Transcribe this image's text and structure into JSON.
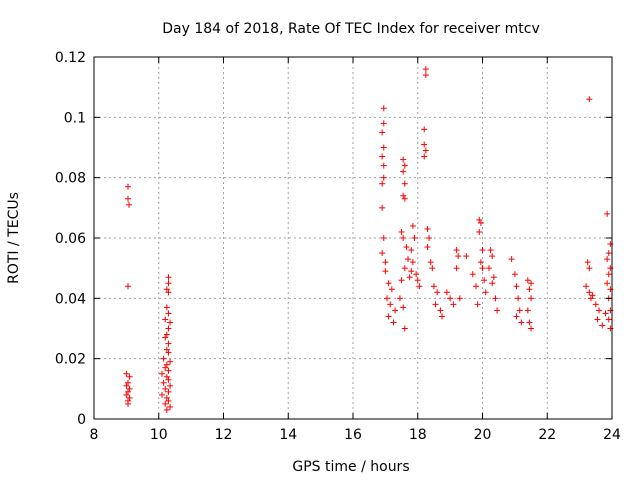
{
  "chart_data": {
    "type": "scatter",
    "title": "Day 184 of 2018, Rate Of TEC Index for receiver mtcv",
    "xlabel": "GPS time / hours",
    "ylabel": "ROTI / TECUs",
    "xlim": [
      8,
      24
    ],
    "ylim": [
      0,
      0.12
    ],
    "x_ticks": [
      8,
      10,
      12,
      14,
      16,
      18,
      20,
      22,
      24
    ],
    "x_tick_labels": [
      "8",
      "10",
      "12",
      "14",
      "16",
      "18",
      "20",
      "22",
      "24"
    ],
    "y_ticks": [
      0,
      0.02,
      0.04,
      0.06,
      0.08,
      0.1,
      0.12
    ],
    "y_tick_labels": [
      "0",
      "0.02",
      "0.04",
      "0.06",
      "0.08",
      "0.1",
      "0.12"
    ],
    "grid": true,
    "marker": "+",
    "marker_color": "#ff0000",
    "series": [
      {
        "name": "ROTI",
        "points": [
          [
            9.05,
            0.077
          ],
          [
            9.05,
            0.073
          ],
          [
            9.08,
            0.071
          ],
          [
            9.05,
            0.044
          ],
          [
            9.0,
            0.015
          ],
          [
            9.1,
            0.014
          ],
          [
            9.05,
            0.012
          ],
          [
            9.0,
            0.011
          ],
          [
            9.1,
            0.01
          ],
          [
            9.05,
            0.009
          ],
          [
            9.0,
            0.008
          ],
          [
            9.1,
            0.007
          ],
          [
            9.05,
            0.006
          ],
          [
            9.05,
            0.005
          ],
          [
            10.3,
            0.047
          ],
          [
            10.3,
            0.045
          ],
          [
            10.25,
            0.043
          ],
          [
            10.3,
            0.042
          ],
          [
            10.25,
            0.037
          ],
          [
            10.3,
            0.035
          ],
          [
            10.2,
            0.033
          ],
          [
            10.35,
            0.032
          ],
          [
            10.3,
            0.03
          ],
          [
            10.25,
            0.028
          ],
          [
            10.2,
            0.027
          ],
          [
            10.3,
            0.025
          ],
          [
            10.25,
            0.023
          ],
          [
            10.3,
            0.022
          ],
          [
            10.15,
            0.02
          ],
          [
            10.35,
            0.019
          ],
          [
            10.25,
            0.018
          ],
          [
            10.2,
            0.017
          ],
          [
            10.3,
            0.016
          ],
          [
            10.1,
            0.015
          ],
          [
            10.25,
            0.014
          ],
          [
            10.3,
            0.013
          ],
          [
            10.15,
            0.012
          ],
          [
            10.35,
            0.011
          ],
          [
            10.2,
            0.01
          ],
          [
            10.3,
            0.009
          ],
          [
            10.1,
            0.008
          ],
          [
            10.25,
            0.007
          ],
          [
            10.3,
            0.006
          ],
          [
            10.2,
            0.005
          ],
          [
            10.35,
            0.004
          ],
          [
            10.25,
            0.003
          ],
          [
            16.95,
            0.103
          ],
          [
            16.95,
            0.098
          ],
          [
            16.9,
            0.095
          ],
          [
            16.95,
            0.09
          ],
          [
            16.9,
            0.087
          ],
          [
            16.95,
            0.084
          ],
          [
            16.95,
            0.08
          ],
          [
            16.9,
            0.078
          ],
          [
            16.9,
            0.07
          ],
          [
            16.95,
            0.06
          ],
          [
            16.9,
            0.055
          ],
          [
            17.0,
            0.052
          ],
          [
            17.0,
            0.049
          ],
          [
            17.1,
            0.045
          ],
          [
            17.2,
            0.043
          ],
          [
            17.05,
            0.04
          ],
          [
            17.15,
            0.038
          ],
          [
            17.3,
            0.036
          ],
          [
            17.1,
            0.034
          ],
          [
            17.25,
            0.032
          ],
          [
            17.5,
            0.046
          ],
          [
            17.45,
            0.04
          ],
          [
            17.55,
            0.037
          ],
          [
            17.6,
            0.03
          ],
          [
            17.55,
            0.086
          ],
          [
            17.6,
            0.084
          ],
          [
            17.55,
            0.082
          ],
          [
            17.6,
            0.078
          ],
          [
            17.55,
            0.074
          ],
          [
            17.6,
            0.073
          ],
          [
            17.5,
            0.062
          ],
          [
            17.55,
            0.06
          ],
          [
            17.65,
            0.057
          ],
          [
            17.7,
            0.053
          ],
          [
            17.6,
            0.05
          ],
          [
            17.75,
            0.047
          ],
          [
            17.85,
            0.064
          ],
          [
            17.9,
            0.06
          ],
          [
            17.8,
            0.056
          ],
          [
            17.85,
            0.052
          ],
          [
            17.8,
            0.049
          ],
          [
            17.95,
            0.048
          ],
          [
            18.0,
            0.046
          ],
          [
            18.05,
            0.044
          ],
          [
            18.25,
            0.116
          ],
          [
            18.25,
            0.114
          ],
          [
            18.2,
            0.096
          ],
          [
            18.2,
            0.091
          ],
          [
            18.25,
            0.089
          ],
          [
            18.2,
            0.087
          ],
          [
            18.3,
            0.063
          ],
          [
            18.35,
            0.06
          ],
          [
            18.3,
            0.057
          ],
          [
            18.4,
            0.052
          ],
          [
            18.45,
            0.05
          ],
          [
            18.5,
            0.044
          ],
          [
            18.6,
            0.042
          ],
          [
            18.55,
            0.038
          ],
          [
            18.7,
            0.036
          ],
          [
            18.75,
            0.034
          ],
          [
            18.9,
            0.042
          ],
          [
            19.0,
            0.04
          ],
          [
            19.1,
            0.038
          ],
          [
            19.2,
            0.056
          ],
          [
            19.25,
            0.054
          ],
          [
            19.2,
            0.05
          ],
          [
            19.3,
            0.04
          ],
          [
            19.5,
            0.054
          ],
          [
            19.7,
            0.048
          ],
          [
            19.8,
            0.044
          ],
          [
            19.85,
            0.038
          ],
          [
            19.9,
            0.066
          ],
          [
            19.95,
            0.065
          ],
          [
            19.9,
            0.062
          ],
          [
            20.0,
            0.056
          ],
          [
            19.95,
            0.052
          ],
          [
            20.0,
            0.05
          ],
          [
            20.05,
            0.046
          ],
          [
            20.1,
            0.042
          ],
          [
            20.25,
            0.056
          ],
          [
            20.3,
            0.054
          ],
          [
            20.2,
            0.05
          ],
          [
            20.35,
            0.047
          ],
          [
            20.3,
            0.045
          ],
          [
            20.4,
            0.04
          ],
          [
            20.45,
            0.036
          ],
          [
            20.9,
            0.053
          ],
          [
            21.0,
            0.048
          ],
          [
            21.05,
            0.044
          ],
          [
            21.1,
            0.04
          ],
          [
            21.15,
            0.036
          ],
          [
            21.05,
            0.034
          ],
          [
            21.2,
            0.032
          ],
          [
            21.4,
            0.046
          ],
          [
            21.5,
            0.045
          ],
          [
            21.45,
            0.043
          ],
          [
            21.5,
            0.04
          ],
          [
            21.4,
            0.036
          ],
          [
            21.45,
            0.032
          ],
          [
            21.5,
            0.03
          ],
          [
            23.3,
            0.106
          ],
          [
            23.25,
            0.052
          ],
          [
            23.3,
            0.05
          ],
          [
            23.2,
            0.044
          ],
          [
            23.3,
            0.042
          ],
          [
            23.35,
            0.04
          ],
          [
            23.4,
            0.041
          ],
          [
            23.5,
            0.038
          ],
          [
            23.6,
            0.036
          ],
          [
            23.55,
            0.033
          ],
          [
            23.7,
            0.031
          ],
          [
            23.8,
            0.035
          ],
          [
            23.85,
            0.068
          ],
          [
            23.95,
            0.058
          ],
          [
            23.9,
            0.055
          ],
          [
            23.85,
            0.053
          ],
          [
            23.95,
            0.05
          ],
          [
            23.9,
            0.048
          ],
          [
            23.85,
            0.045
          ],
          [
            23.95,
            0.043
          ],
          [
            23.9,
            0.04
          ],
          [
            23.95,
            0.036
          ],
          [
            23.9,
            0.033
          ],
          [
            23.95,
            0.03
          ]
        ]
      }
    ]
  }
}
